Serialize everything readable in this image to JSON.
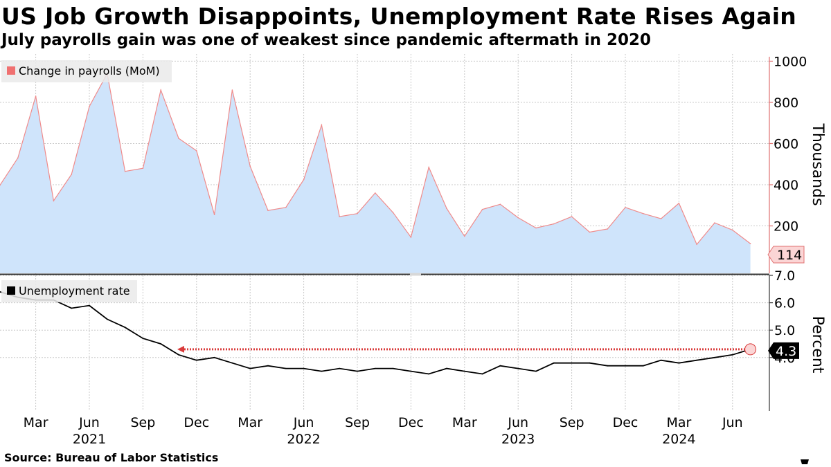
{
  "title": "US Job Growth Disappoints, Unemployment Rate Rises Again",
  "subtitle": "July payrolls gain was one of weakest since pandemic aftermath in 2020",
  "source": "Source: Bureau of Labor Statistics",
  "colors": {
    "payrolls_fill": "#cfe4fb",
    "payrolls_line": "#f08a8a",
    "payrolls_legend": "#f07070",
    "payrolls_badge": "#fbd5d5",
    "unemployment_line": "#000000",
    "reference_arrow": "#d93a3a",
    "grid": "#c8c8c8",
    "axis_top": "#e07070",
    "axis_bottom": "#333333"
  },
  "chart_data": [
    {
      "type": "area",
      "title": "Change in payrolls (MoM)",
      "legend": "Change in payrolls (MoM)",
      "legend_position": "top-left",
      "ylabel": "Thousands",
      "yaxis_side": "right",
      "ylim": [
        -30,
        1035
      ],
      "yticks": [
        200,
        400,
        600,
        800,
        1000
      ],
      "ytick_labels": [
        "200",
        "400",
        "600",
        "800",
        "1000"
      ],
      "last_value_label": "114",
      "x": [
        "2021-01",
        "2021-02",
        "2021-03",
        "2021-04",
        "2021-05",
        "2021-06",
        "2021-07",
        "2021-08",
        "2021-09",
        "2021-10",
        "2021-11",
        "2021-12",
        "2022-01",
        "2022-02",
        "2022-03",
        "2022-04",
        "2022-05",
        "2022-06",
        "2022-07",
        "2022-08",
        "2022-09",
        "2022-10",
        "2022-11",
        "2022-12",
        "2023-01",
        "2023-02",
        "2023-03",
        "2023-04",
        "2023-05",
        "2023-06",
        "2023-07",
        "2023-08",
        "2023-09",
        "2023-10",
        "2023-11",
        "2023-12",
        "2024-01",
        "2024-02",
        "2024-03",
        "2024-04",
        "2024-05",
        "2024-06",
        "2024-07"
      ],
      "values": [
        398,
        530,
        830,
        322,
        450,
        780,
        940,
        465,
        480,
        860,
        625,
        565,
        255,
        860,
        490,
        275,
        290,
        425,
        690,
        245,
        260,
        360,
        265,
        145,
        485,
        285,
        150,
        280,
        305,
        240,
        190,
        210,
        245,
        170,
        185,
        290,
        260,
        235,
        310,
        110,
        215,
        180,
        114
      ]
    },
    {
      "type": "line",
      "title": "Unemployment rate",
      "legend": "Unemployment rate",
      "legend_position": "top-left",
      "ylabel": "Percent",
      "yaxis_side": "right",
      "ylim": [
        2.05,
        7.0
      ],
      "yticks": [
        4.0,
        5.0,
        6.0,
        7.0
      ],
      "ytick_labels": [
        "4.0",
        "5.0",
        "6.0",
        "7.0"
      ],
      "last_value_label": "4.3",
      "reference_line": 4.3,
      "x": [
        "2021-01",
        "2021-02",
        "2021-03",
        "2021-04",
        "2021-05",
        "2021-06",
        "2021-07",
        "2021-08",
        "2021-09",
        "2021-10",
        "2021-11",
        "2021-12",
        "2022-01",
        "2022-02",
        "2022-03",
        "2022-04",
        "2022-05",
        "2022-06",
        "2022-07",
        "2022-08",
        "2022-09",
        "2022-10",
        "2022-11",
        "2022-12",
        "2023-01",
        "2023-02",
        "2023-03",
        "2023-04",
        "2023-05",
        "2023-06",
        "2023-07",
        "2023-08",
        "2023-09",
        "2023-10",
        "2023-11",
        "2023-12",
        "2024-01",
        "2024-02",
        "2024-03",
        "2024-04",
        "2024-05",
        "2024-06",
        "2024-07"
      ],
      "values": [
        6.4,
        6.2,
        6.1,
        6.1,
        5.8,
        5.9,
        5.4,
        5.1,
        4.7,
        4.5,
        4.1,
        3.9,
        4.0,
        3.8,
        3.6,
        3.7,
        3.6,
        3.6,
        3.5,
        3.6,
        3.5,
        3.6,
        3.6,
        3.5,
        3.4,
        3.6,
        3.5,
        3.4,
        3.7,
        3.6,
        3.5,
        3.8,
        3.8,
        3.8,
        3.7,
        3.7,
        3.7,
        3.9,
        3.8,
        3.9,
        4.0,
        4.1,
        4.3
      ]
    }
  ],
  "x_axis": {
    "month_labels": [
      "Mar",
      "Jun",
      "Sep",
      "Dec",
      "Mar",
      "Jun",
      "Sep",
      "Dec",
      "Mar",
      "Jun",
      "Sep",
      "Dec",
      "Mar",
      "Jun"
    ],
    "month_label_index": [
      2,
      5,
      8,
      11,
      14,
      17,
      20,
      23,
      26,
      29,
      32,
      35,
      38,
      41
    ],
    "year_labels": [
      "2021",
      "2022",
      "2023",
      "2024"
    ],
    "year_label_index": [
      5,
      17,
      29,
      38
    ]
  }
}
